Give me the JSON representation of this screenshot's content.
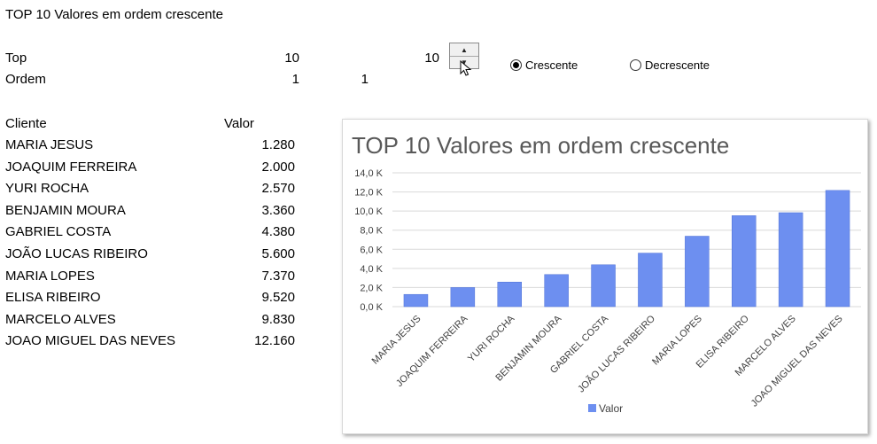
{
  "sheet": {
    "heading": "TOP 10 Valores em ordem crescente",
    "top_label": "Top",
    "top_value": "10",
    "top_spinner_value": "10",
    "order_label": "Ordem",
    "order_value": "1",
    "order_value_2": "1",
    "col_cliente": "Cliente",
    "col_valor": "Valor",
    "rows": [
      {
        "cliente": "MARIA JESUS",
        "valor": "1.280"
      },
      {
        "cliente": "JOAQUIM FERREIRA",
        "valor": "2.000"
      },
      {
        "cliente": "YURI ROCHA",
        "valor": "2.570"
      },
      {
        "cliente": "BENJAMIN MOURA",
        "valor": "3.360"
      },
      {
        "cliente": "GABRIEL COSTA",
        "valor": "4.380"
      },
      {
        "cliente": "JOÃO LUCAS RIBEIRO",
        "valor": "5.600"
      },
      {
        "cliente": "MARIA LOPES",
        "valor": "7.370"
      },
      {
        "cliente": "ELISA RIBEIRO",
        "valor": "9.520"
      },
      {
        "cliente": "MARCELO ALVES",
        "valor": "9.830"
      },
      {
        "cliente": "JOAO MIGUEL DAS NEVES",
        "valor": "12.160"
      }
    ]
  },
  "controls": {
    "radio_asc_label": "Crescente",
    "radio_desc_label": "Decrescente",
    "selected": "asc",
    "spinner_up_icon": "triangle-up-icon",
    "spinner_down_icon": "triangle-down-icon"
  },
  "colors": {
    "bar": "#6d8ff0",
    "bar_stroke": "#4f72d6",
    "title": "#595959",
    "grid": "#d9d9d9"
  },
  "chart_data": {
    "type": "bar",
    "title": "TOP 10 Valores em ordem crescente",
    "categories": [
      "MARIA JESUS",
      "JOAQUIM FERREIRA",
      "YURI ROCHA",
      "BENJAMIN MOURA",
      "GABRIEL COSTA",
      "JOÃO LUCAS RIBEIRO",
      "MARIA LOPES",
      "ELISA RIBEIRO",
      "MARCELO ALVES",
      "JOAO MIGUEL DAS NEVES"
    ],
    "series": [
      {
        "name": "Valor",
        "values": [
          1280,
          2000,
          2570,
          3360,
          4380,
          5600,
          7370,
          9520,
          9830,
          12160
        ]
      }
    ],
    "ylim": [
      0,
      14000
    ],
    "yticks": [
      "0,0 K",
      "2,0 K",
      "4,0 K",
      "6,0 K",
      "8,0 K",
      "10,0 K",
      "12,0 K",
      "14,0 K"
    ],
    "grid": true,
    "legend": "bottom"
  }
}
